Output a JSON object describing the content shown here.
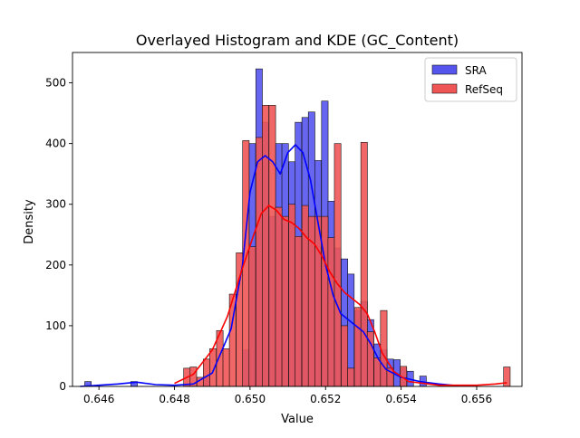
{
  "chart_data": {
    "type": "bar",
    "title": "Overlayed Histogram and KDE (GC_Content)",
    "xlabel": "Value",
    "ylabel": "Density",
    "xlim": [
      0.6453,
      0.6572
    ],
    "ylim": [
      0,
      550
    ],
    "xticks": [
      "0.646",
      "0.648",
      "0.650",
      "0.652",
      "0.654",
      "0.656"
    ],
    "xtick_values": [
      0.646,
      0.648,
      0.65,
      0.652,
      0.654,
      0.656
    ],
    "yticks": [
      "0",
      "100",
      "200",
      "300",
      "400",
      "500"
    ],
    "ytick_values": [
      0,
      100,
      200,
      300,
      400,
      500
    ],
    "legend_position": "top-right",
    "grid": false,
    "bin_width": 0.000174,
    "series": [
      {
        "name": "SRA",
        "color": "#0000ff",
        "fill": "#5555ee",
        "bins": [
          {
            "x": 0.64571,
            "y": 8
          },
          {
            "x": 0.64693,
            "y": 8
          },
          {
            "x": 0.64885,
            "y": 17
          },
          {
            "x": 0.64989,
            "y": 60
          },
          {
            "x": 0.65006,
            "y": 400
          },
          {
            "x": 0.65024,
            "y": 523
          },
          {
            "x": 0.65041,
            "y": 435
          },
          {
            "x": 0.65059,
            "y": 280
          },
          {
            "x": 0.65076,
            "y": 400
          },
          {
            "x": 0.65093,
            "y": 400
          },
          {
            "x": 0.65111,
            "y": 370
          },
          {
            "x": 0.65128,
            "y": 435
          },
          {
            "x": 0.65146,
            "y": 443
          },
          {
            "x": 0.65163,
            "y": 452
          },
          {
            "x": 0.6518,
            "y": 372
          },
          {
            "x": 0.65198,
            "y": 470
          },
          {
            "x": 0.65215,
            "y": 305
          },
          {
            "x": 0.65232,
            "y": 228
          },
          {
            "x": 0.6525,
            "y": 210
          },
          {
            "x": 0.65267,
            "y": 185
          },
          {
            "x": 0.65285,
            "y": 125
          },
          {
            "x": 0.65302,
            "y": 140
          },
          {
            "x": 0.65319,
            "y": 110
          },
          {
            "x": 0.65337,
            "y": 70
          },
          {
            "x": 0.65354,
            "y": 60
          },
          {
            "x": 0.65371,
            "y": 45
          },
          {
            "x": 0.65389,
            "y": 44
          },
          {
            "x": 0.65406,
            "y": 30
          },
          {
            "x": 0.65424,
            "y": 25
          },
          {
            "x": 0.65458,
            "y": 17
          }
        ],
        "kde": [
          [
            0.6455,
            0
          ],
          [
            0.646,
            2
          ],
          [
            0.6465,
            4
          ],
          [
            0.647,
            7
          ],
          [
            0.6475,
            3
          ],
          [
            0.648,
            2
          ],
          [
            0.6485,
            4
          ],
          [
            0.649,
            22
          ],
          [
            0.6495,
            95
          ],
          [
            0.6498,
            200
          ],
          [
            0.65,
            320
          ],
          [
            0.6502,
            370
          ],
          [
            0.6504,
            380
          ],
          [
            0.6506,
            370
          ],
          [
            0.6508,
            350
          ],
          [
            0.651,
            385
          ],
          [
            0.6512,
            398
          ],
          [
            0.6514,
            385
          ],
          [
            0.6516,
            340
          ],
          [
            0.6518,
            270
          ],
          [
            0.652,
            200
          ],
          [
            0.6522,
            150
          ],
          [
            0.6524,
            120
          ],
          [
            0.6526,
            110
          ],
          [
            0.6528,
            100
          ],
          [
            0.653,
            90
          ],
          [
            0.6532,
            70
          ],
          [
            0.6534,
            45
          ],
          [
            0.6536,
            28
          ],
          [
            0.654,
            15
          ],
          [
            0.6545,
            8
          ],
          [
            0.655,
            4
          ],
          [
            0.6555,
            1
          ]
        ]
      },
      {
        "name": "RefSeq",
        "color": "#ff0000",
        "fill": "#f05555",
        "bins": [
          {
            "x": 0.64833,
            "y": 30
          },
          {
            "x": 0.6485,
            "y": 32
          },
          {
            "x": 0.64868,
            "y": 15
          },
          {
            "x": 0.64885,
            "y": 45
          },
          {
            "x": 0.64902,
            "y": 62
          },
          {
            "x": 0.6492,
            "y": 92
          },
          {
            "x": 0.64937,
            "y": 62
          },
          {
            "x": 0.64954,
            "y": 152
          },
          {
            "x": 0.64972,
            "y": 220
          },
          {
            "x": 0.64989,
            "y": 405
          },
          {
            "x": 0.65006,
            "y": 230
          },
          {
            "x": 0.65024,
            "y": 410
          },
          {
            "x": 0.65041,
            "y": 463
          },
          {
            "x": 0.65059,
            "y": 463
          },
          {
            "x": 0.65076,
            "y": 295
          },
          {
            "x": 0.65093,
            "y": 280
          },
          {
            "x": 0.65111,
            "y": 300
          },
          {
            "x": 0.65128,
            "y": 247
          },
          {
            "x": 0.65146,
            "y": 298
          },
          {
            "x": 0.65163,
            "y": 280
          },
          {
            "x": 0.6518,
            "y": 280
          },
          {
            "x": 0.65198,
            "y": 280
          },
          {
            "x": 0.65215,
            "y": 245
          },
          {
            "x": 0.65232,
            "y": 400
          },
          {
            "x": 0.6525,
            "y": 100
          },
          {
            "x": 0.65267,
            "y": 30
          },
          {
            "x": 0.65285,
            "y": 130
          },
          {
            "x": 0.65302,
            "y": 402
          },
          {
            "x": 0.65319,
            "y": 90
          },
          {
            "x": 0.65337,
            "y": 47
          },
          {
            "x": 0.65354,
            "y": 125
          },
          {
            "x": 0.65371,
            "y": 30
          },
          {
            "x": 0.65406,
            "y": 33
          },
          {
            "x": 0.6568,
            "y": 32
          }
        ],
        "kde": [
          [
            0.648,
            5
          ],
          [
            0.6485,
            20
          ],
          [
            0.649,
            60
          ],
          [
            0.6494,
            115
          ],
          [
            0.6498,
            195
          ],
          [
            0.6501,
            250
          ],
          [
            0.6503,
            285
          ],
          [
            0.6505,
            298
          ],
          [
            0.6507,
            290
          ],
          [
            0.6509,
            275
          ],
          [
            0.6511,
            270
          ],
          [
            0.6513,
            260
          ],
          [
            0.6515,
            245
          ],
          [
            0.6517,
            235
          ],
          [
            0.6519,
            215
          ],
          [
            0.6521,
            190
          ],
          [
            0.6523,
            170
          ],
          [
            0.6525,
            155
          ],
          [
            0.6527,
            145
          ],
          [
            0.6529,
            135
          ],
          [
            0.6531,
            120
          ],
          [
            0.6533,
            90
          ],
          [
            0.6535,
            55
          ],
          [
            0.6538,
            25
          ],
          [
            0.6542,
            8
          ],
          [
            0.655,
            2
          ],
          [
            0.656,
            2
          ],
          [
            0.6565,
            4
          ],
          [
            0.6568,
            6
          ]
        ]
      }
    ]
  }
}
